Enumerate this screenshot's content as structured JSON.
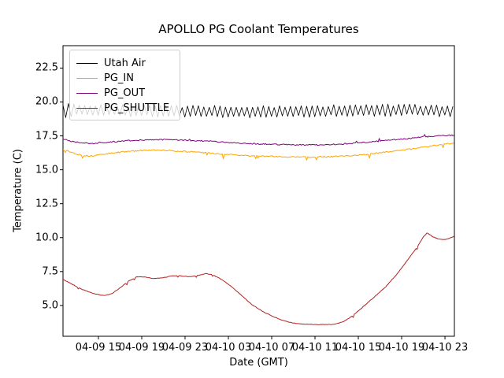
{
  "chart_data": {
    "type": "line",
    "title": "APOLLO PG Coolant Temperatures",
    "xlabel": "Date (GMT)",
    "ylabel": "Temperature (C)",
    "grid": false,
    "legend_position": "upper left",
    "x_unit": "hours since 04-09 00:00 GMT",
    "xlim": [
      11.73,
      47.87
    ],
    "ylim": [
      2.73,
      24.15
    ],
    "xticks": [
      {
        "value": 15,
        "label": "04-09 15"
      },
      {
        "value": 19,
        "label": "04-09 19"
      },
      {
        "value": 23,
        "label": "04-09 23"
      },
      {
        "value": 27,
        "label": "04-10 03"
      },
      {
        "value": 31,
        "label": "04-10 07"
      },
      {
        "value": 35,
        "label": "04-10 11"
      },
      {
        "value": 39,
        "label": "04-10 15"
      },
      {
        "value": 43,
        "label": "04-10 19"
      },
      {
        "value": 47,
        "label": "04-10 23"
      }
    ],
    "yticks": [
      {
        "value": 5.0,
        "label": "5.0"
      },
      {
        "value": 7.5,
        "label": "7.5"
      },
      {
        "value": 10.0,
        "label": "10.0"
      },
      {
        "value": 12.5,
        "label": "12.5"
      },
      {
        "value": 15.0,
        "label": "15.0"
      },
      {
        "value": 17.5,
        "label": "17.5"
      },
      {
        "value": 20.0,
        "label": "20.0"
      },
      {
        "value": 22.5,
        "label": "22.5"
      }
    ],
    "series": [
      {
        "name": "Utah Air",
        "color": "#000000",
        "linewidth": 0.8,
        "style": "high-frequency sawtooth oscillation",
        "trend": [
          [
            11.73,
            19.45
          ],
          [
            14,
            19.4
          ],
          [
            20,
            19.35
          ],
          [
            26,
            19.3
          ],
          [
            32,
            19.3
          ],
          [
            38,
            19.35
          ],
          [
            44,
            19.4
          ],
          [
            47.87,
            19.3
          ]
        ],
        "oscillation": {
          "period_hours": 0.5,
          "amp_min": 0.28,
          "amp_max": 0.46,
          "start_boost": 0.35,
          "boost_until_hour": 12.7
        },
        "noise": 0.02,
        "seed": 7
      },
      {
        "name": "PG_IN",
        "color": "#ffa500",
        "linewidth": 1.0,
        "trend": [
          [
            11.73,
            16.5
          ],
          [
            12.3,
            16.35
          ],
          [
            13.0,
            16.15
          ],
          [
            13.6,
            16.05
          ],
          [
            14.3,
            16.02
          ],
          [
            15.0,
            16.1
          ],
          [
            16.0,
            16.2
          ],
          [
            17.0,
            16.3
          ],
          [
            18.0,
            16.38
          ],
          [
            19.0,
            16.42
          ],
          [
            20.0,
            16.45
          ],
          [
            21.5,
            16.42
          ],
          [
            23.0,
            16.35
          ],
          [
            24.5,
            16.28
          ],
          [
            26.0,
            16.18
          ],
          [
            27.5,
            16.1
          ],
          [
            29.0,
            16.03
          ],
          [
            30.5,
            16.0
          ],
          [
            32.0,
            15.97
          ],
          [
            33.5,
            15.95
          ],
          [
            35.0,
            15.95
          ],
          [
            36.5,
            15.97
          ],
          [
            38.0,
            16.02
          ],
          [
            39.5,
            16.12
          ],
          [
            41.0,
            16.25
          ],
          [
            42.5,
            16.4
          ],
          [
            44.0,
            16.55
          ],
          [
            45.5,
            16.72
          ],
          [
            46.8,
            16.88
          ],
          [
            47.87,
            16.98
          ]
        ],
        "noise": 0.045,
        "spikes": {
          "probability": 0.025,
          "direction": -1,
          "min": 0.12,
          "max": 0.32
        },
        "seed": 13
      },
      {
        "name": "PG_OUT",
        "color": "#800080",
        "linewidth": 1.0,
        "trend": [
          [
            11.73,
            17.28
          ],
          [
            12.5,
            17.1
          ],
          [
            13.5,
            16.98
          ],
          [
            14.5,
            16.95
          ],
          [
            15.5,
            17.0
          ],
          [
            16.5,
            17.08
          ],
          [
            17.5,
            17.15
          ],
          [
            18.5,
            17.18
          ],
          [
            19.5,
            17.2
          ],
          [
            21.0,
            17.22
          ],
          [
            22.5,
            17.2
          ],
          [
            24.0,
            17.15
          ],
          [
            25.5,
            17.1
          ],
          [
            27.0,
            17.02
          ],
          [
            28.5,
            16.95
          ],
          [
            30.0,
            16.9
          ],
          [
            31.5,
            16.87
          ],
          [
            33.0,
            16.85
          ],
          [
            34.5,
            16.83
          ],
          [
            36.0,
            16.85
          ],
          [
            37.5,
            16.9
          ],
          [
            39.0,
            16.98
          ],
          [
            40.5,
            17.08
          ],
          [
            42.0,
            17.2
          ],
          [
            43.5,
            17.3
          ],
          [
            45.0,
            17.42
          ],
          [
            46.2,
            17.5
          ],
          [
            47.87,
            17.55
          ]
        ],
        "noise": 0.045,
        "spikes": {
          "probability": 0.02,
          "direction": 1,
          "min": 0.08,
          "max": 0.2
        },
        "seed": 21
      },
      {
        "name": "PG_SHUTTLE",
        "color": "#b22222",
        "linewidth": 1.0,
        "trend": [
          [
            11.73,
            6.92
          ],
          [
            12.5,
            6.6
          ],
          [
            13.3,
            6.25
          ],
          [
            14.3,
            5.95
          ],
          [
            15.0,
            5.8
          ],
          [
            15.5,
            5.72
          ],
          [
            16.2,
            5.85
          ],
          [
            17.0,
            6.3
          ],
          [
            17.8,
            6.8
          ],
          [
            18.6,
            7.12
          ],
          [
            19.3,
            7.1
          ],
          [
            20.2,
            6.98
          ],
          [
            21.0,
            7.05
          ],
          [
            21.8,
            7.18
          ],
          [
            22.6,
            7.18
          ],
          [
            23.4,
            7.12
          ],
          [
            24.2,
            7.2
          ],
          [
            24.9,
            7.35
          ],
          [
            25.5,
            7.28
          ],
          [
            26.3,
            6.95
          ],
          [
            27.2,
            6.45
          ],
          [
            28.2,
            5.75
          ],
          [
            29.2,
            5.05
          ],
          [
            30.2,
            4.55
          ],
          [
            31.2,
            4.15
          ],
          [
            32.2,
            3.85
          ],
          [
            33.0,
            3.7
          ],
          [
            34.0,
            3.62
          ],
          [
            35.0,
            3.6
          ],
          [
            36.0,
            3.6
          ],
          [
            36.9,
            3.62
          ],
          [
            37.6,
            3.8
          ],
          [
            38.5,
            4.25
          ],
          [
            39.5,
            4.95
          ],
          [
            40.5,
            5.65
          ],
          [
            41.5,
            6.35
          ],
          [
            42.5,
            7.25
          ],
          [
            43.5,
            8.3
          ],
          [
            44.3,
            9.15
          ],
          [
            45.0,
            10.05
          ],
          [
            45.35,
            10.35
          ],
          [
            45.9,
            10.05
          ],
          [
            46.4,
            9.9
          ],
          [
            46.9,
            9.85
          ],
          [
            47.4,
            9.95
          ],
          [
            47.87,
            10.1
          ]
        ],
        "noise": 0.02,
        "spikes": {
          "probability": 0.03,
          "direction": -1,
          "min": 0.08,
          "max": 0.2
        },
        "seed": 42
      }
    ]
  }
}
